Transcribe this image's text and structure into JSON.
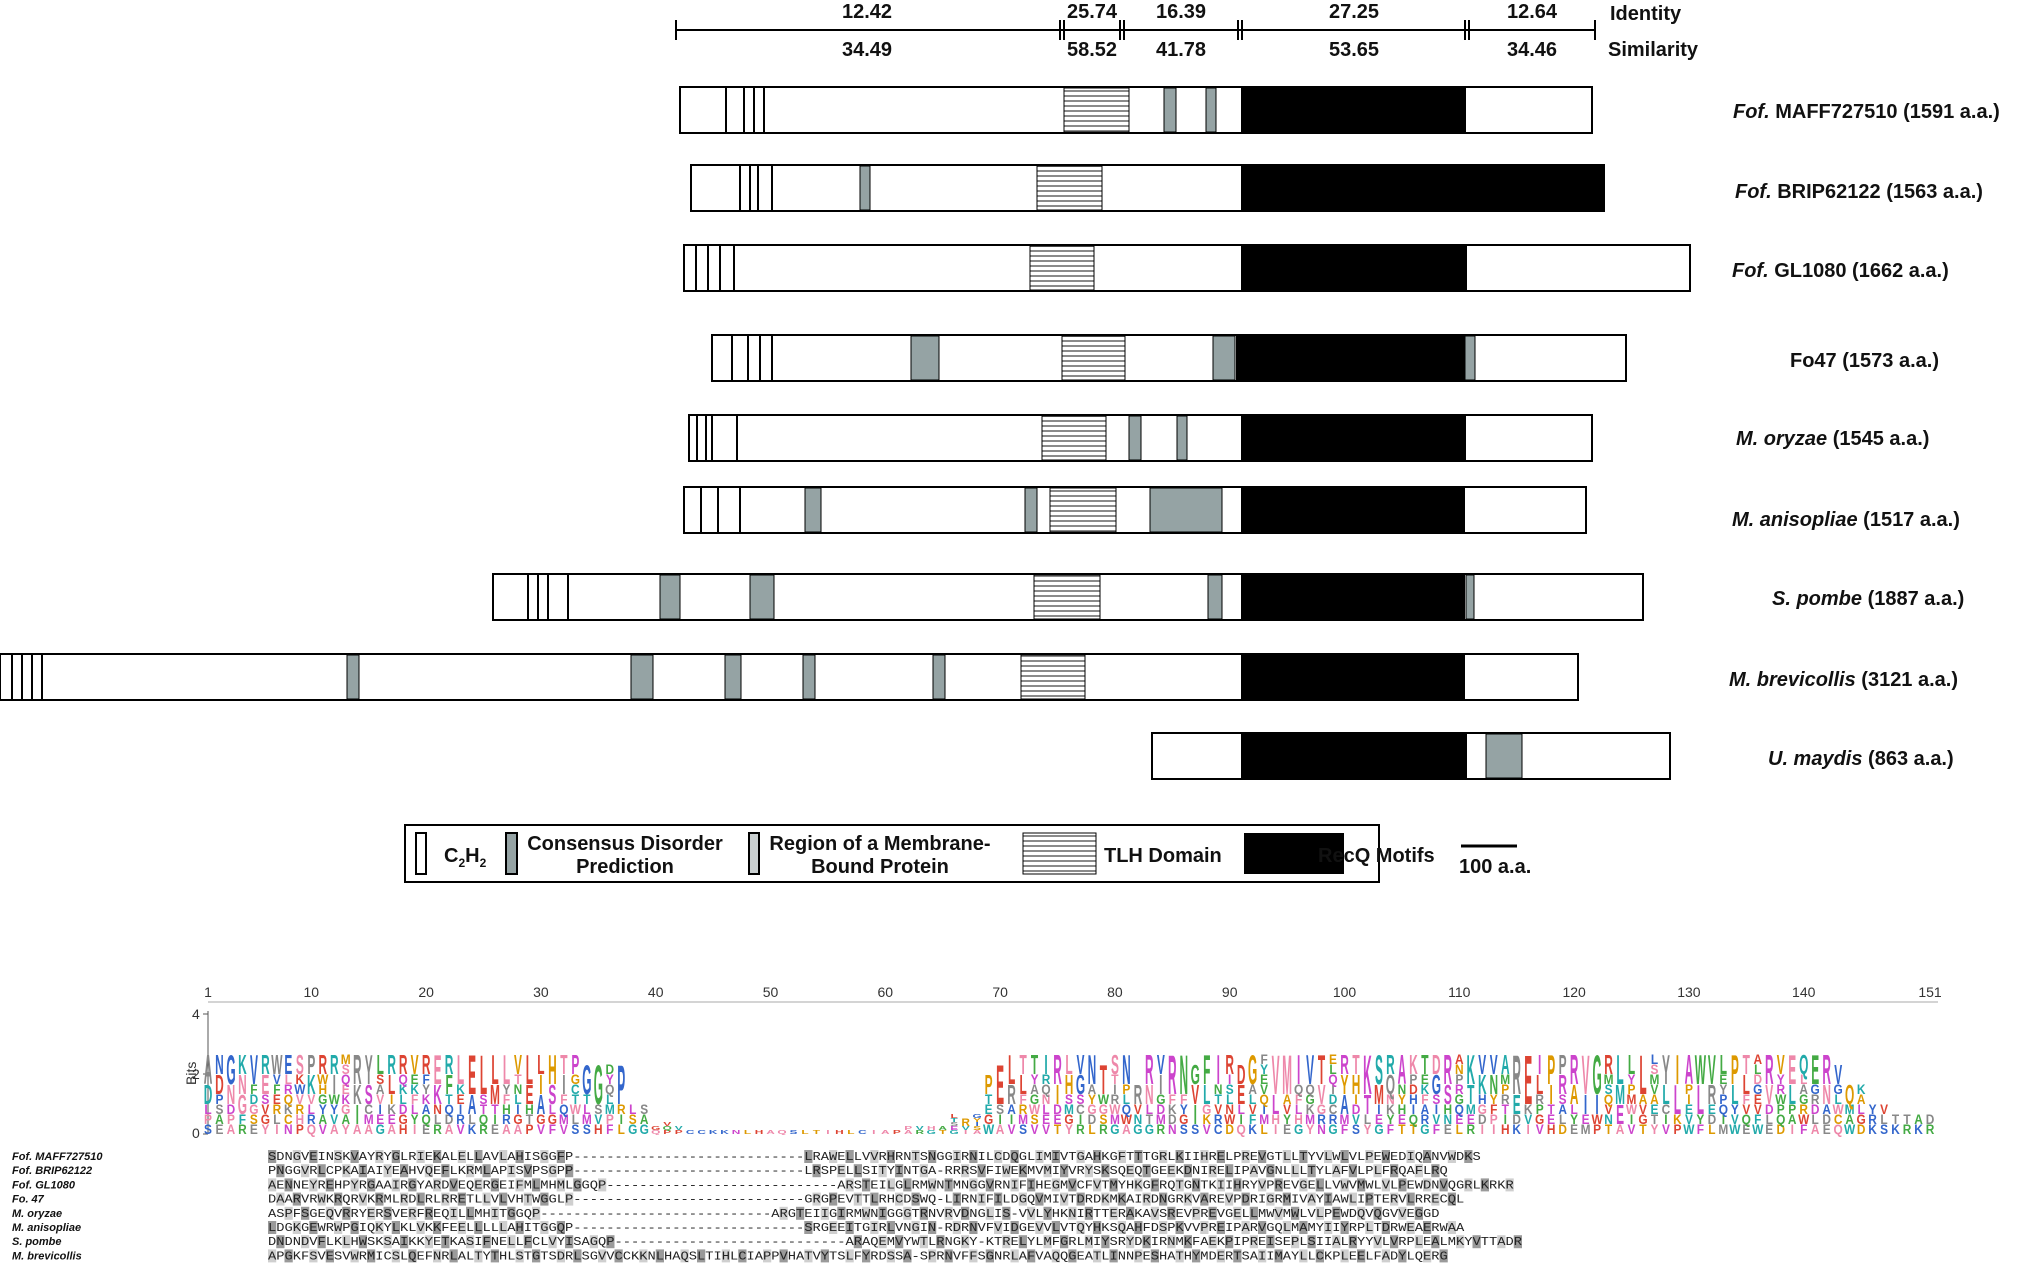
{
  "domain_scale": {
    "segments": [
      {
        "identity": "12.42",
        "similarity": "34.49"
      },
      {
        "identity": "25.74",
        "similarity": "58.52"
      },
      {
        "identity": "16.39",
        "similarity": "41.78"
      },
      {
        "identity": "27.25",
        "similarity": "53.65"
      },
      {
        "identity": "12.64",
        "similarity": "34.46"
      }
    ],
    "identity_label": "Identity",
    "similarity_label": "Similarity"
  },
  "proteins": [
    {
      "species": "Fof.",
      "name": "MAFF727510",
      "length": "(1591 a.a.)",
      "italic_part": "Fof."
    },
    {
      "species": "Fof.",
      "name": "BRIP62122",
      "length": "(1563 a.a.)",
      "italic_part": "Fof."
    },
    {
      "species": "Fof.",
      "name": "GL1080",
      "length": "(1662 a.a.)",
      "italic_part": "Fof."
    },
    {
      "species": "",
      "name": "Fo47",
      "length": "(1573 a.a.)",
      "italic_part": ""
    },
    {
      "species": "M. oryzae",
      "name": "",
      "length": "(1545 a.a.)",
      "italic_part": "M. oryzae"
    },
    {
      "species": "M. anisopliae",
      "name": "",
      "length": "(1517 a.a.)",
      "italic_part": "M. anisopliae"
    },
    {
      "species": "S. pombe",
      "name": "",
      "length": "(1887 a.a.)",
      "italic_part": "S. pombe"
    },
    {
      "species": "M. brevicollis",
      "name": "",
      "length": "(3121 a.a.)",
      "italic_part": "M. brevicollis"
    },
    {
      "species": "U. maydis",
      "name": "",
      "length": "(863 a.a.)",
      "italic_part": "U. maydis"
    }
  ],
  "legend": {
    "c2h2": "C2H2",
    "c2h2_main": "C",
    "c2h2_sub": "2",
    "c2h2_tail": "H",
    "c2h2_sub2": "2",
    "disorder": [
      "Consensus Disorder",
      "Prediction"
    ],
    "membrane": [
      "Region of a Membrane-",
      "Bound Protein"
    ],
    "tlh": "TLH Domain",
    "recq": "RecQ Motifs",
    "scale_bar": "100 a.a."
  },
  "colors": {
    "disorder": "#95a3a4",
    "recq": "#000000",
    "tlh_stripe": "#888888",
    "box": "#ffffff"
  },
  "logo": {
    "axis_label": "Bits",
    "y_ticks": [
      "0",
      "2",
      "4"
    ],
    "x_ticks": [
      "1",
      "10",
      "20",
      "30",
      "40",
      "50",
      "60",
      "70",
      "80",
      "90",
      "100",
      "110",
      "120",
      "130",
      "140",
      "151"
    ]
  },
  "alignment": {
    "names": [
      "Fof. MAFF727510",
      "Fof. BRIP62122",
      "Fof. GL1080",
      "Fo. 47",
      "M. oryzae",
      "M. anisopliae",
      "S. pombe",
      "M. brevicollis"
    ],
    "sequences": [
      "SDNGVEINSKVAYRYGLRIEKALELLAVLAHISGGFP----------------------------LRAWELLVVRHRNTSNGGIRNILCDQGLIMIVTGAHKGFTTTGRLKIIHRELPREVGTLLTYVLWLVLPEWEDIQANVWDKS",
      "PNGGVRLCPKAIAIYEAHVQEFLKRMLAPISVPSGPP----------------------------LRSPELLSITYINTGA-RRRSVFIWEKMVMIYVRYSKSQEQTGEEKDNIRELIPAVGNLLLTYLAFVLPLFRQAFLRQ",
      "AENNEYREHPYRGAAIRGYARDVEQERGEIFMLMHMLGGQP----------------------------ARSTEILGLRMWNTMNGGVRNIFIHEGMVCFVTMYHKGFRQTGNTKIIHRYVPREVGELLVWVMWLVLPEWDNVQGRLKRKR",
      "DAARVRWKRQRVKRMLRDLRLRRETLLVLVHTWGGLP----------------------------GRGPEVTTLRHCDSWQ-LIRNIFILDGQVMIVTDRDKMKAIRDNGRKVAREVPDRIGRMIVAYIAWLIPTERVLRRECQL",
      "ASPFSGEQVRRYERSVERFREQILLMHITGGQP----------------------------ARGTEIIGIRMWNIGGGTRNVRVDNGLIS-VVLYHKNIRTTERAKAVSREVPREVGELLMWVMWLVLPEWDQVQGVVEGGD",
      "LDGKGEWRWPGIQKYLKLVKKFEELLLLLAHITGGQP----------------------------SRGEEITGIRLVNGIN-RDRNVFVIDGEVVLVTQYHKSQAHFDSPKVVPREIPARVGQLMAMYIIYRPLTDRWEAERWAA",
      "DNDNDVFLKLHWSKSAIKKYETKASIFNELLFCLVYISAGQP----------------------------ARAQEMVYWTLRNGKY-KTRELYLMFGRLMIYSRYDKIRNMKFAEKPIPREISEPLSIIALRYYVLVRPLEALMKYVTTADR",
      "APGKFSVESVWRMICSLQEFNRLALTYTHLSTGTSDRLSGVVCCKKNLHAQSLTIHLCIAPPVHATVYTSLFYRDSSA-SPRNVFFSGNRLAFVAQQGEATLINNPESHATHYMDERTSAIIMAYLLCKPLEELFADYLQERG"
    ]
  }
}
